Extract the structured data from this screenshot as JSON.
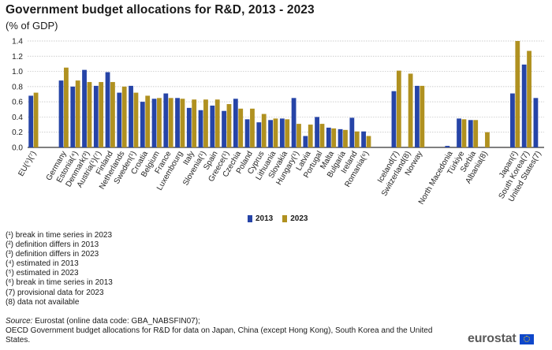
{
  "chart_data": {
    "type": "bar",
    "title": "Government budget allocations for R&D, 2013 - 2023",
    "subtitle": "(% of GDP)",
    "ylim": [
      0,
      1.4
    ],
    "yticks": [
      "0.0",
      "0.2",
      "0.4",
      "0.6",
      "0.8",
      "1.0",
      "1.2",
      "1.4"
    ],
    "groups": [
      {
        "name": "eu",
        "categories": [
          "EU(⁵)(⁷)"
        ]
      },
      {
        "name": "eu-members",
        "categories": [
          "Germany",
          "Estonia(⁴)",
          "Denmark(³)",
          "Austria(¹)(⁷)",
          "Finland",
          "Netherlands",
          "Sweden(¹)",
          "Croatia",
          "Belgium",
          "France",
          "Luxembourg",
          "Italy",
          "Slovenia(¹)",
          "Spain",
          "Greece(¹)",
          "Czechia",
          "Poland",
          "Cyprus",
          "Lithuania",
          "Slovakia",
          "Hungary(¹)",
          "Latvia",
          "Portugal",
          "Malta",
          "Bulgaria",
          "Ireland",
          "Romania(⁶)"
        ]
      },
      {
        "name": "efta",
        "categories": [
          "Iceland(7)",
          "Switzerland(8)",
          "Norway"
        ]
      },
      {
        "name": "candidates",
        "categories": [
          "North Macedonia",
          "Türkiye",
          "Serbia",
          "Albania(8)"
        ]
      },
      {
        "name": "others",
        "categories": [
          "Japan(²)",
          "South Korea(7)",
          "United States(7)"
        ]
      }
    ],
    "series": [
      {
        "name": "2013",
        "color": "#2644a7",
        "values": [
          0.68,
          0.88,
          0.8,
          1.02,
          0.81,
          0.99,
          0.72,
          0.81,
          0.6,
          0.64,
          0.71,
          0.65,
          0.52,
          0.49,
          0.55,
          0.48,
          0.64,
          0.37,
          0.33,
          0.36,
          0.38,
          0.65,
          0.15,
          0.4,
          0.26,
          0.24,
          0.39,
          0.21,
          0.74,
          null,
          0.81,
          0.02,
          0.38,
          0.36,
          null,
          0.71,
          1.09,
          0.65
        ]
      },
      {
        "name": "2023",
        "color": "#b09120",
        "values": [
          0.72,
          1.05,
          0.88,
          0.86,
          0.86,
          0.86,
          0.8,
          0.72,
          0.68,
          0.65,
          0.65,
          0.64,
          0.63,
          0.63,
          0.63,
          0.57,
          0.51,
          0.51,
          0.44,
          0.38,
          0.37,
          0.31,
          0.3,
          0.31,
          0.25,
          0.23,
          0.21,
          0.15,
          1.01,
          0.97,
          0.81,
          null,
          0.37,
          0.36,
          0.2,
          1.4,
          1.27,
          null
        ]
      }
    ]
  },
  "legend": {
    "label_2013": "2013",
    "label_2023": "2023"
  },
  "notes": [
    "(¹) break in time series in 2023",
    "(²) definition differs in 2013",
    "(³) definition differs in 2023",
    "(⁴) estimated in 2013",
    "(⁵) estimated in 2023",
    "(⁶) break in time series in 2013",
    "(7) provisional data for 2023",
    "(8) data not available"
  ],
  "source": {
    "label": "Source:",
    "line1": " Eurostat (online data code: GBA_NABSFIN07);",
    "line2": "OECD Government budget allocations for R&D for data on Japan, China (except Hong Kong), South Korea and the United States."
  },
  "logo": {
    "text": "eurostat"
  }
}
